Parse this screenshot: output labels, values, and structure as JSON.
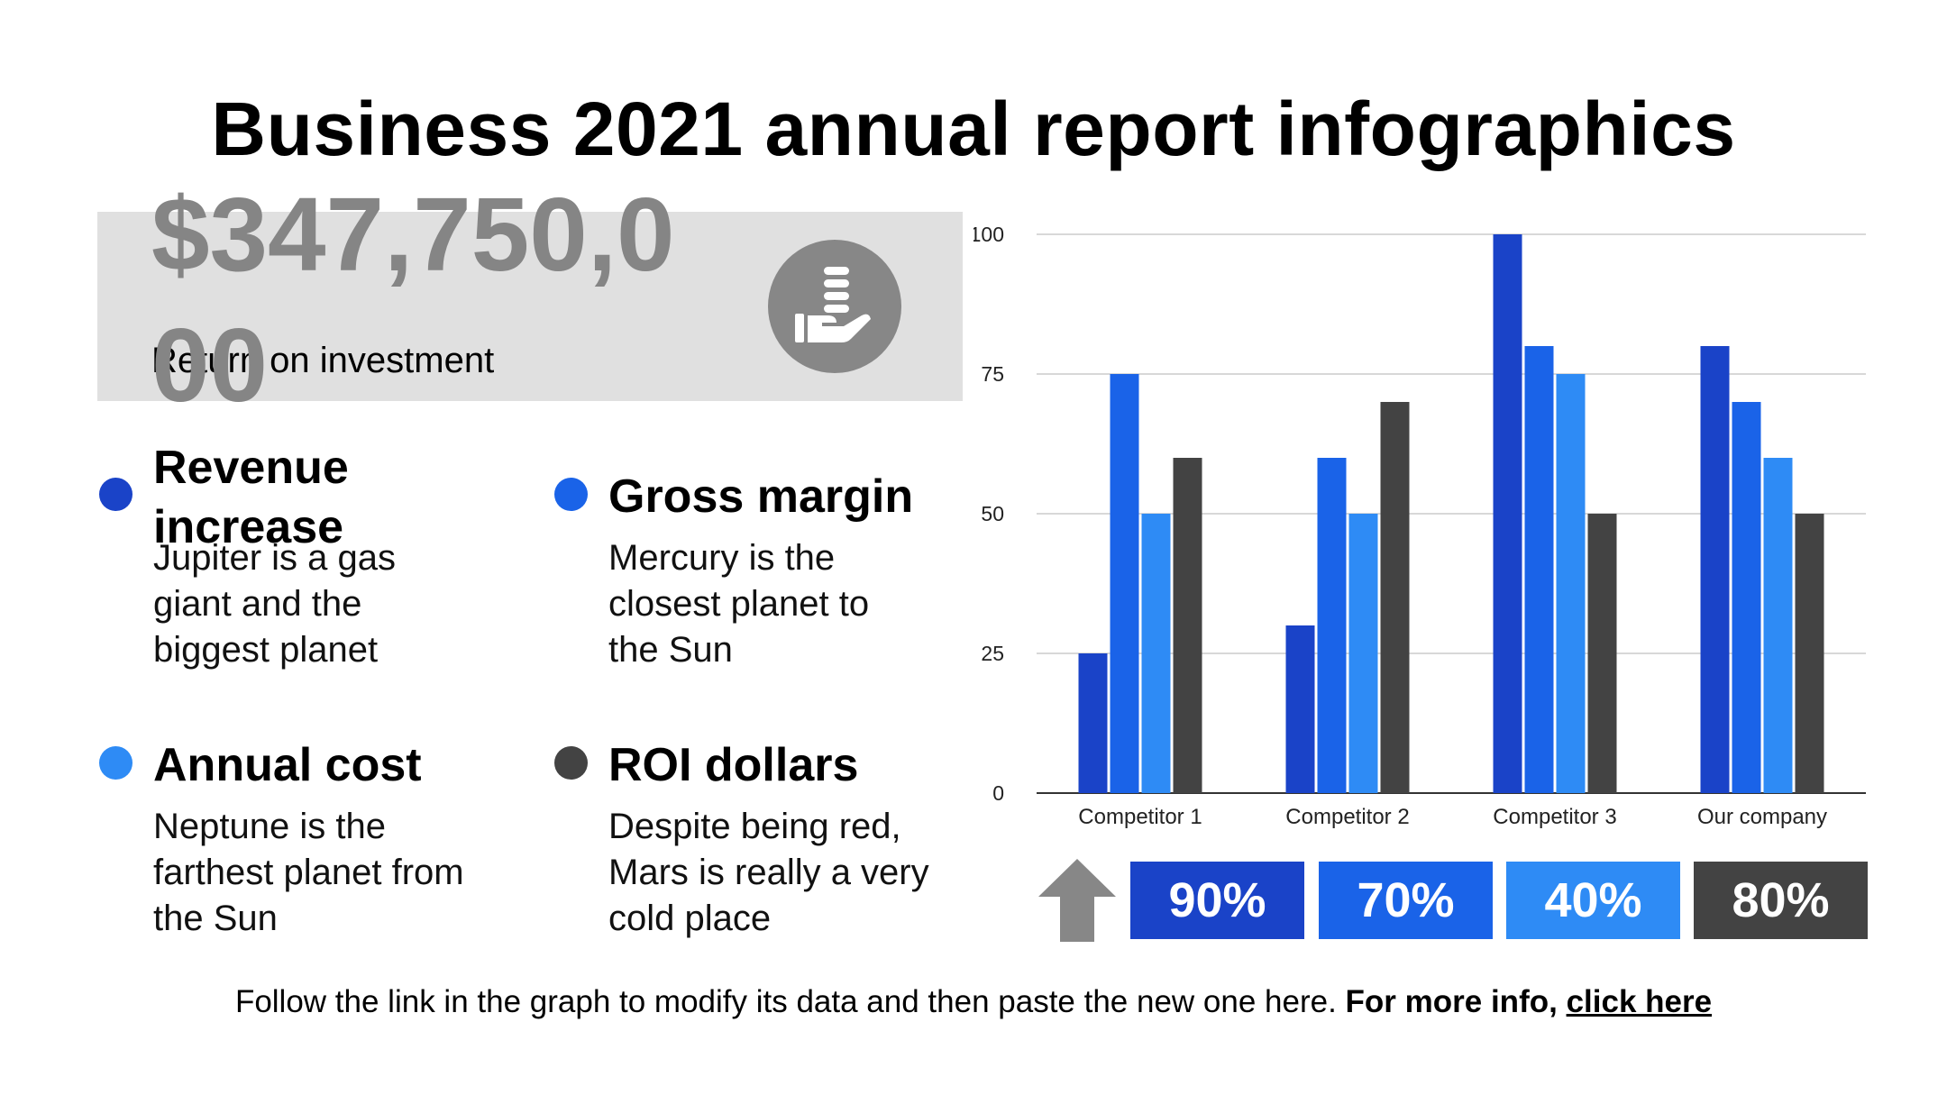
{
  "title": "Business 2021 annual report infographics",
  "roi": {
    "amount": "$347,750,000",
    "label": "Return on investment",
    "icon": "hand-coins-icon",
    "panel_color": "#e0e0e0",
    "amount_color": "#858585"
  },
  "legend": [
    {
      "title": "Revenue increase",
      "desc": "Jupiter is a gas giant and the biggest planet",
      "color": "#1a43c8"
    },
    {
      "title": "Gross margin",
      "desc": "Mercury is the closest planet to the Sun",
      "color": "#1a63e8"
    },
    {
      "title": "Annual cost",
      "desc": "Neptune is the farthest planet from the Sun",
      "color": "#2e8bf5"
    },
    {
      "title": "ROI dollars",
      "desc": "Despite being red, Mars is really a very cold place",
      "color": "#434343"
    }
  ],
  "chart_data": {
    "type": "bar",
    "categories": [
      "Competitor 1",
      "Competitor 2",
      "Competitor 3",
      "Our company"
    ],
    "series": [
      {
        "values": [
          25,
          30,
          100,
          80
        ],
        "color": "#1a43c8"
      },
      {
        "values": [
          75,
          60,
          80,
          70
        ],
        "color": "#1a63e8"
      },
      {
        "values": [
          50,
          50,
          75,
          60
        ],
        "color": "#2e8bf5"
      },
      {
        "values": [
          60,
          70,
          50,
          50
        ],
        "color": "#434343"
      }
    ],
    "yticks": [
      0,
      25,
      50,
      75,
      100
    ],
    "ylim": [
      0,
      100
    ],
    "grid": true,
    "title": "",
    "xlabel": "",
    "ylabel": ""
  },
  "percentages": [
    {
      "value": "90%",
      "color": "#1a43c8"
    },
    {
      "value": "70%",
      "color": "#1a63e8"
    },
    {
      "value": "40%",
      "color": "#2e8bf5"
    },
    {
      "value": "80%",
      "color": "#434343"
    }
  ],
  "arrow_icon": "up-arrow-icon",
  "arrow_color": "#878787",
  "footer": {
    "text": "Follow the link in the graph to modify its data and then paste the new one here.",
    "bold": "For more info,",
    "link": "click here"
  }
}
